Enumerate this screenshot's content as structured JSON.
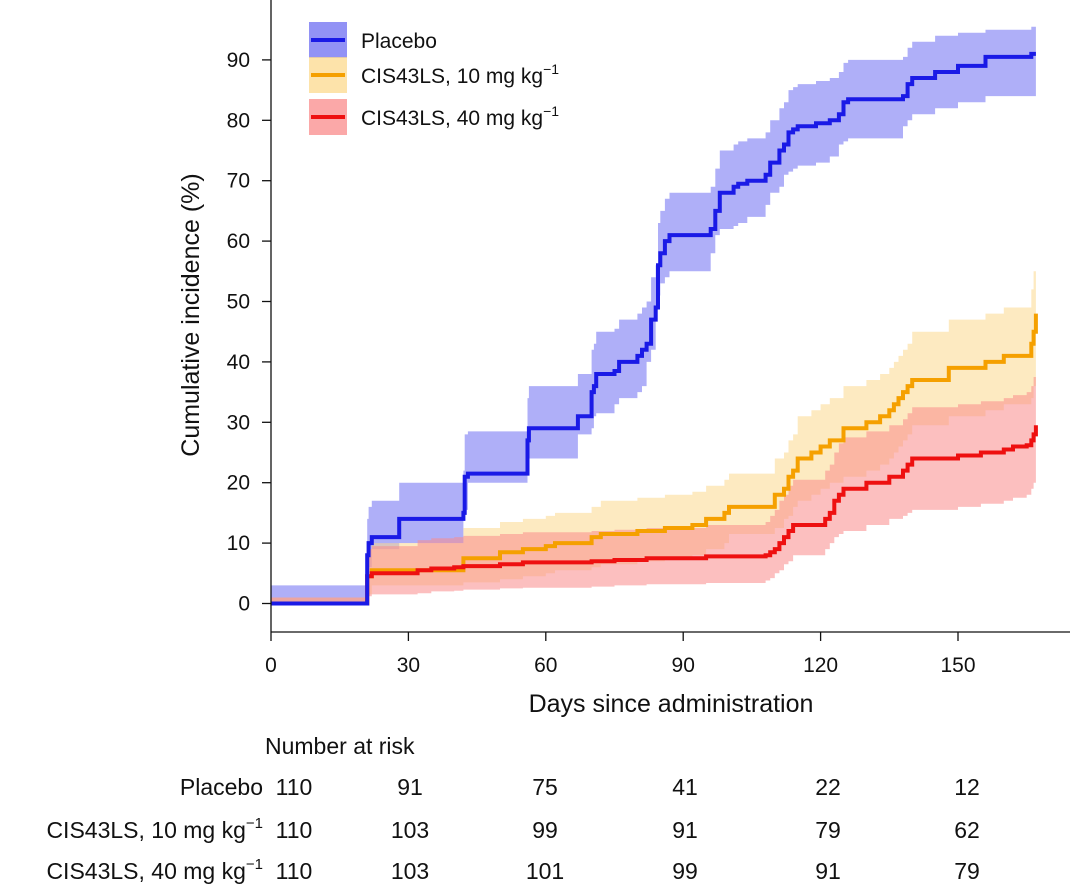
{
  "chart_data": {
    "type": "line",
    "subtype": "kaplan-meier cumulative incidence (step) with confidence bands",
    "xlabel": "Days since administration",
    "ylabel": "Cumulative incidence (%)",
    "xlim": [
      0,
      175
    ],
    "ylim": [
      -5,
      100
    ],
    "xticks": [
      0,
      30,
      60,
      90,
      120,
      150
    ],
    "yticks": [
      0,
      10,
      20,
      30,
      40,
      50,
      60,
      70,
      80,
      90
    ],
    "legend_position": "top-left",
    "series": [
      {
        "name": "Placebo",
        "name_main": "Placebo",
        "name_sup": "",
        "color": "#1a1ae6",
        "band_color": "#6e6ef2",
        "x": [
          0,
          21,
          21.3,
          22,
          28,
          42,
          42.3,
          43,
          56,
          56.3,
          67,
          70,
          70.5,
          71,
          75,
          76,
          80,
          81,
          82,
          83,
          84,
          84.5,
          85,
          86,
          87,
          96,
          97,
          98,
          101,
          102,
          104,
          108,
          109,
          111,
          112,
          113,
          114,
          115,
          119,
          122,
          124,
          125,
          126,
          138,
          139,
          140,
          145,
          150,
          156,
          166,
          167
        ],
        "y": [
          0,
          8,
          10,
          11,
          14,
          15,
          21,
          21.5,
          27,
          29,
          31,
          35,
          36,
          38,
          38.5,
          40,
          41,
          42,
          43,
          47,
          49,
          56,
          58,
          60,
          61,
          62,
          65,
          68,
          69,
          69.5,
          70,
          71,
          73,
          75,
          76,
          78,
          78.5,
          79,
          79.5,
          80,
          81,
          83,
          83.5,
          84,
          86,
          87,
          88,
          89,
          90.5,
          91,
          91
        ],
        "lower": [
          0,
          3,
          5,
          6,
          9,
          10,
          15,
          15.5,
          20,
          22,
          24,
          28,
          29,
          31,
          31.5,
          33,
          34,
          35,
          36,
          40,
          42,
          49,
          51,
          53,
          54,
          55,
          58,
          61,
          62,
          62.5,
          63,
          64,
          66,
          68,
          69,
          71,
          71.5,
          72,
          72.5,
          73,
          74,
          76,
          76.5,
          77,
          79,
          80,
          81,
          82,
          83,
          84,
          84
        ],
        "upper": [
          0,
          14,
          16,
          17,
          20,
          22,
          28,
          28.5,
          34,
          36,
          38,
          42,
          43,
          45,
          45.5,
          47,
          48,
          49,
          50,
          54,
          56,
          63,
          65,
          67,
          68,
          69,
          72,
          75,
          76,
          76.5,
          77,
          78,
          80,
          82,
          83,
          85,
          85.5,
          86,
          86.5,
          87,
          88,
          89.5,
          90,
          90.5,
          92,
          93,
          94,
          94.5,
          95,
          95.5,
          95.5
        ]
      },
      {
        "name": "CIS43LS, 10 mg kg−1",
        "name_main": "CIS43LS, 10 mg kg",
        "name_sup": "−1",
        "color": "#f5a000",
        "band_color": "#fcd98e",
        "x": [
          0,
          21,
          22,
          42,
          50,
          55,
          60,
          62,
          70,
          72,
          80,
          86,
          92,
          95,
          99,
          100,
          110,
          112,
          113,
          114,
          115,
          118,
          120,
          122,
          125,
          130,
          133,
          135,
          136,
          137,
          138,
          139,
          140,
          148,
          156,
          160,
          166,
          166.5,
          167
        ],
        "y": [
          0,
          4.5,
          5.5,
          7.5,
          8.5,
          9,
          9.5,
          10,
          11,
          11.5,
          12,
          12.5,
          13,
          14,
          15,
          16,
          18,
          19,
          21,
          22,
          24,
          25,
          26,
          27,
          29,
          30,
          31,
          32,
          33,
          34,
          35,
          36,
          37,
          39,
          40,
          41,
          43,
          45,
          48
        ],
        "lower": [
          0,
          1,
          1.5,
          3,
          3.5,
          4,
          4.5,
          5,
          5.5,
          6,
          6.5,
          7,
          7.5,
          8,
          9,
          10,
          11.5,
          12.5,
          14,
          14.5,
          16,
          17,
          18,
          19,
          20,
          21,
          22,
          23,
          24,
          25,
          26,
          27,
          28,
          29.5,
          31,
          32,
          33,
          34,
          36
        ],
        "upper": [
          0,
          9,
          10,
          12.5,
          13.5,
          14,
          14.5,
          15,
          16,
          17,
          17.5,
          18,
          18.5,
          19.5,
          20.5,
          21.5,
          24,
          25,
          27,
          28,
          31,
          32,
          33,
          34,
          36,
          37,
          38,
          39,
          40,
          41,
          42,
          43,
          45,
          47,
          48,
          49,
          52,
          55,
          58
        ]
      },
      {
        "name": "CIS43LS, 40 mg kg−1",
        "name_main": "CIS43LS, 40 mg kg",
        "name_sup": "−1",
        "color": "#ee1010",
        "band_color": "#f98b8b",
        "x": [
          0,
          21,
          22,
          32,
          35,
          40,
          42,
          50,
          55,
          70,
          75,
          82,
          95,
          108,
          109,
          110,
          111,
          112,
          113,
          114,
          121,
          122,
          123,
          124,
          125,
          130,
          135,
          138,
          139,
          140,
          150,
          155,
          160,
          162,
          165,
          166,
          166.5,
          167
        ],
        "y": [
          0,
          4.5,
          5,
          5.5,
          5.8,
          6,
          6.2,
          6.5,
          6.8,
          7,
          7.2,
          7.5,
          7.8,
          8,
          8.5,
          9,
          10,
          11,
          12,
          13,
          14,
          15,
          17,
          18,
          19,
          20,
          21,
          22,
          23,
          24,
          24.5,
          25,
          25.5,
          26,
          26.2,
          27,
          28,
          29.5
        ],
        "lower": [
          0,
          1,
          1.2,
          1.5,
          1.7,
          2,
          2.1,
          2.3,
          2.5,
          2.6,
          2.8,
          3,
          3.2,
          3.4,
          3.8,
          4.2,
          5,
          5.5,
          6.5,
          7,
          8,
          9,
          10,
          11,
          11.5,
          12,
          13,
          14,
          14.5,
          15,
          15.5,
          16,
          16.5,
          17,
          17.5,
          18,
          19,
          20
        ],
        "upper": [
          0,
          9,
          9.5,
          10.5,
          10.8,
          11,
          11.2,
          11.5,
          11.8,
          12,
          12.2,
          12.5,
          13,
          13.5,
          14.5,
          15.5,
          17,
          18,
          19.5,
          20.5,
          22,
          23,
          25,
          26.5,
          27.5,
          28.5,
          29.5,
          30.5,
          31.5,
          32.5,
          33,
          33.5,
          34,
          34.5,
          35,
          36,
          37.5,
          39
        ]
      }
    ],
    "risk_table": {
      "title": "Number at risk",
      "timepoints": [
        0,
        30,
        60,
        90,
        120,
        150
      ],
      "rows": [
        {
          "label_main": "Placebo",
          "label_sup": "",
          "values": [
            110,
            91,
            75,
            41,
            22,
            12
          ]
        },
        {
          "label_main": "CIS43LS, 10 mg kg",
          "label_sup": "−1",
          "values": [
            110,
            103,
            99,
            91,
            79,
            62
          ]
        },
        {
          "label_main": "CIS43LS, 40 mg kg",
          "label_sup": "−1",
          "values": [
            110,
            103,
            101,
            99,
            91,
            79
          ]
        }
      ]
    }
  }
}
